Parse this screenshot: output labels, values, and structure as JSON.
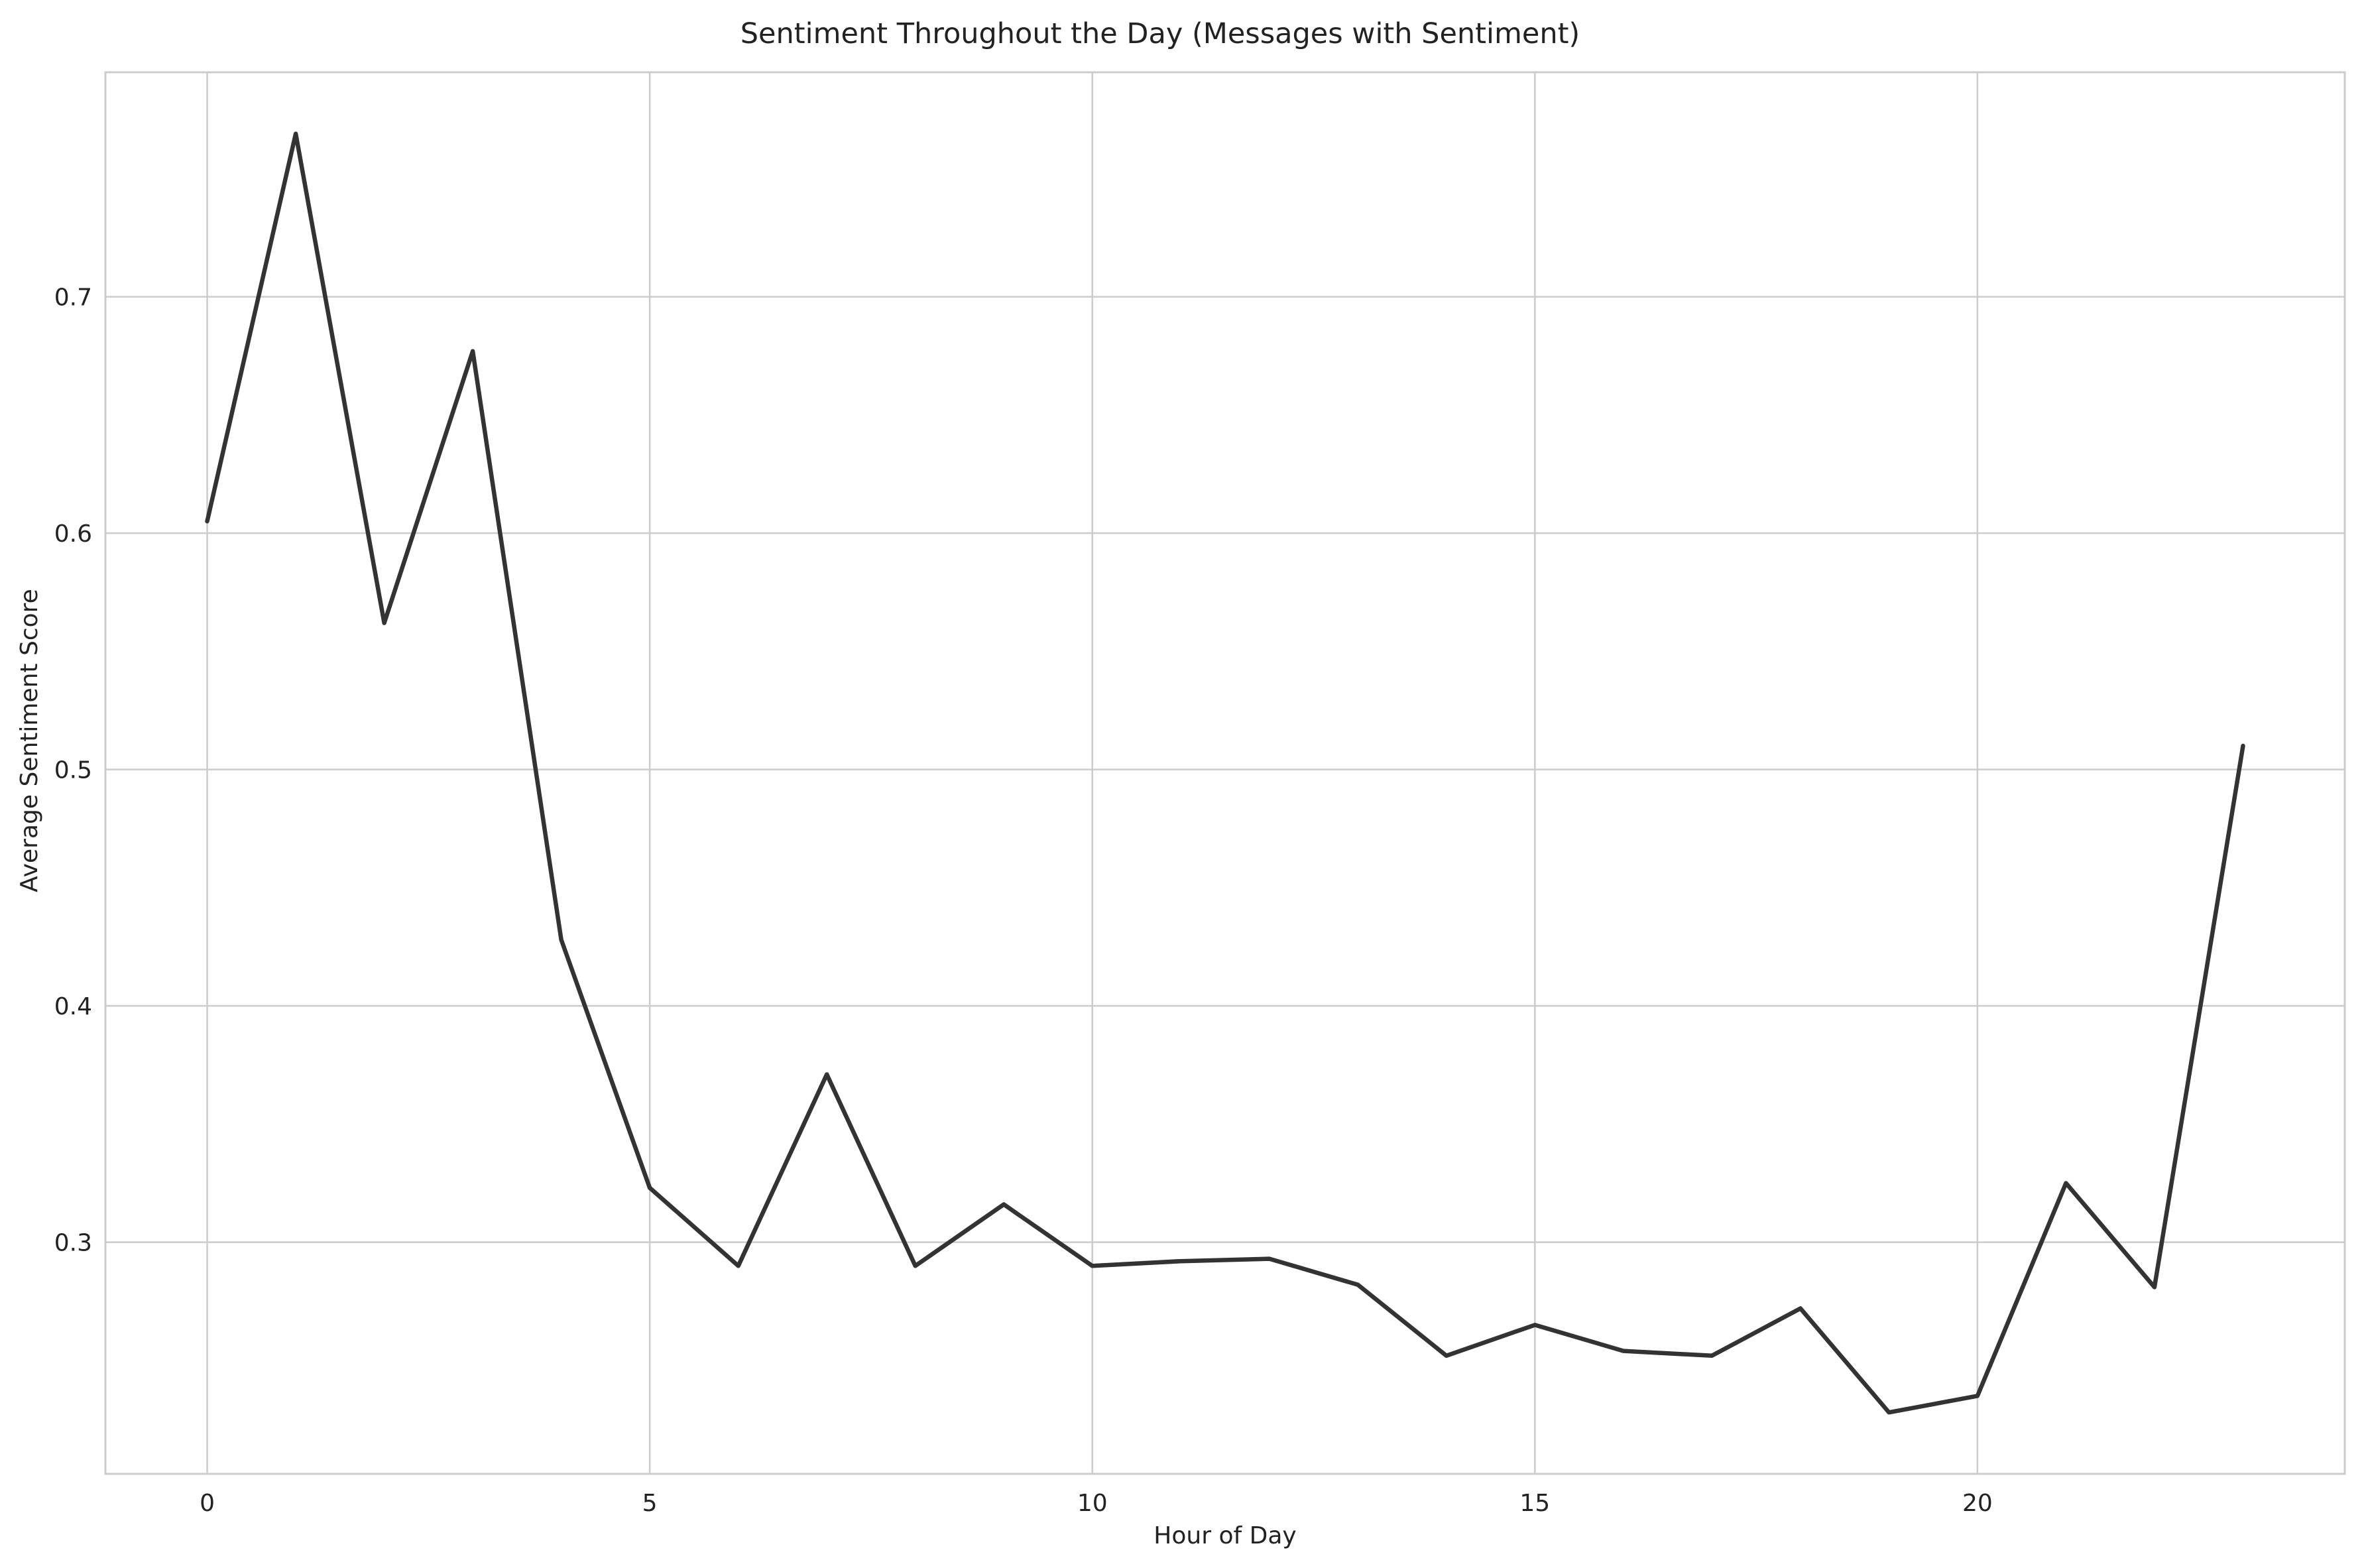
{
  "chart_data": {
    "type": "line",
    "title": "Sentiment Throughout the Day (Messages with Sentiment)",
    "xlabel": "Hour of Day",
    "ylabel": "Average Sentiment Score",
    "xlim": [
      -1.15,
      24.15
    ],
    "ylim": [
      0.202,
      0.795
    ],
    "xticks": [
      0,
      5,
      10,
      15,
      20
    ],
    "yticks": [
      0.3,
      0.4,
      0.5,
      0.6,
      0.7
    ],
    "xtick_labels": [
      "0",
      "5",
      "10",
      "15",
      "20"
    ],
    "ytick_labels": [
      "0.3",
      "0.4",
      "0.5",
      "0.6",
      "0.7"
    ],
    "grid": true,
    "legend": "none",
    "series": [
      {
        "color": "#333333",
        "x": [
          0,
          1,
          2,
          3,
          4,
          5,
          6,
          7,
          8,
          9,
          10,
          11,
          12,
          13,
          14,
          15,
          16,
          17,
          18,
          19,
          20,
          21,
          22,
          23
        ],
        "y": [
          0.605,
          0.769,
          0.562,
          0.677,
          0.428,
          0.323,
          0.29,
          0.371,
          0.29,
          0.316,
          0.29,
          0.292,
          0.293,
          0.282,
          0.252,
          0.265,
          0.254,
          0.252,
          0.272,
          0.228,
          0.235,
          0.325,
          0.281,
          0.51
        ]
      }
    ]
  }
}
